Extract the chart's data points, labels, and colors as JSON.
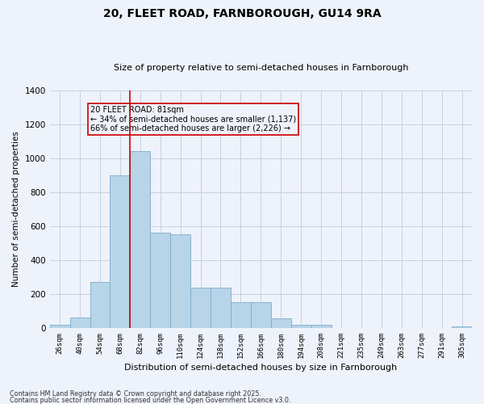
{
  "title1": "20, FLEET ROAD, FARNBOROUGH, GU14 9RA",
  "title2": "Size of property relative to semi-detached houses in Farnborough",
  "xlabel": "Distribution of semi-detached houses by size in Farnborough",
  "ylabel": "Number of semi-detached properties",
  "categories": [
    "26sqm",
    "40sqm",
    "54sqm",
    "68sqm",
    "82sqm",
    "96sqm",
    "110sqm",
    "124sqm",
    "138sqm",
    "152sqm",
    "166sqm",
    "180sqm",
    "194sqm",
    "208sqm",
    "221sqm",
    "235sqm",
    "249sqm",
    "263sqm",
    "277sqm",
    "291sqm",
    "305sqm"
  ],
  "values": [
    20,
    60,
    270,
    900,
    1045,
    560,
    550,
    240,
    240,
    150,
    150,
    55,
    20,
    20,
    0,
    0,
    0,
    0,
    0,
    0,
    10
  ],
  "bar_color": "#b8d4e8",
  "bar_edge_color": "#7aadcc",
  "bg_color": "#eef2fa",
  "grid_color": "#c8d0e0",
  "vline_color": "#cc0000",
  "vline_x_index": 4,
  "annotation_text": "20 FLEET ROAD: 81sqm\n← 34% of semi-detached houses are smaller (1,137)\n66% of semi-detached houses are larger (2,226) →",
  "annotation_box_color": "#cc0000",
  "footer1": "Contains HM Land Registry data © Crown copyright and database right 2025.",
  "footer2": "Contains public sector information licensed under the Open Government Licence v3.0.",
  "ylim": [
    0,
    1400
  ],
  "yticks": [
    0,
    200,
    400,
    600,
    800,
    1000,
    1200,
    1400
  ]
}
